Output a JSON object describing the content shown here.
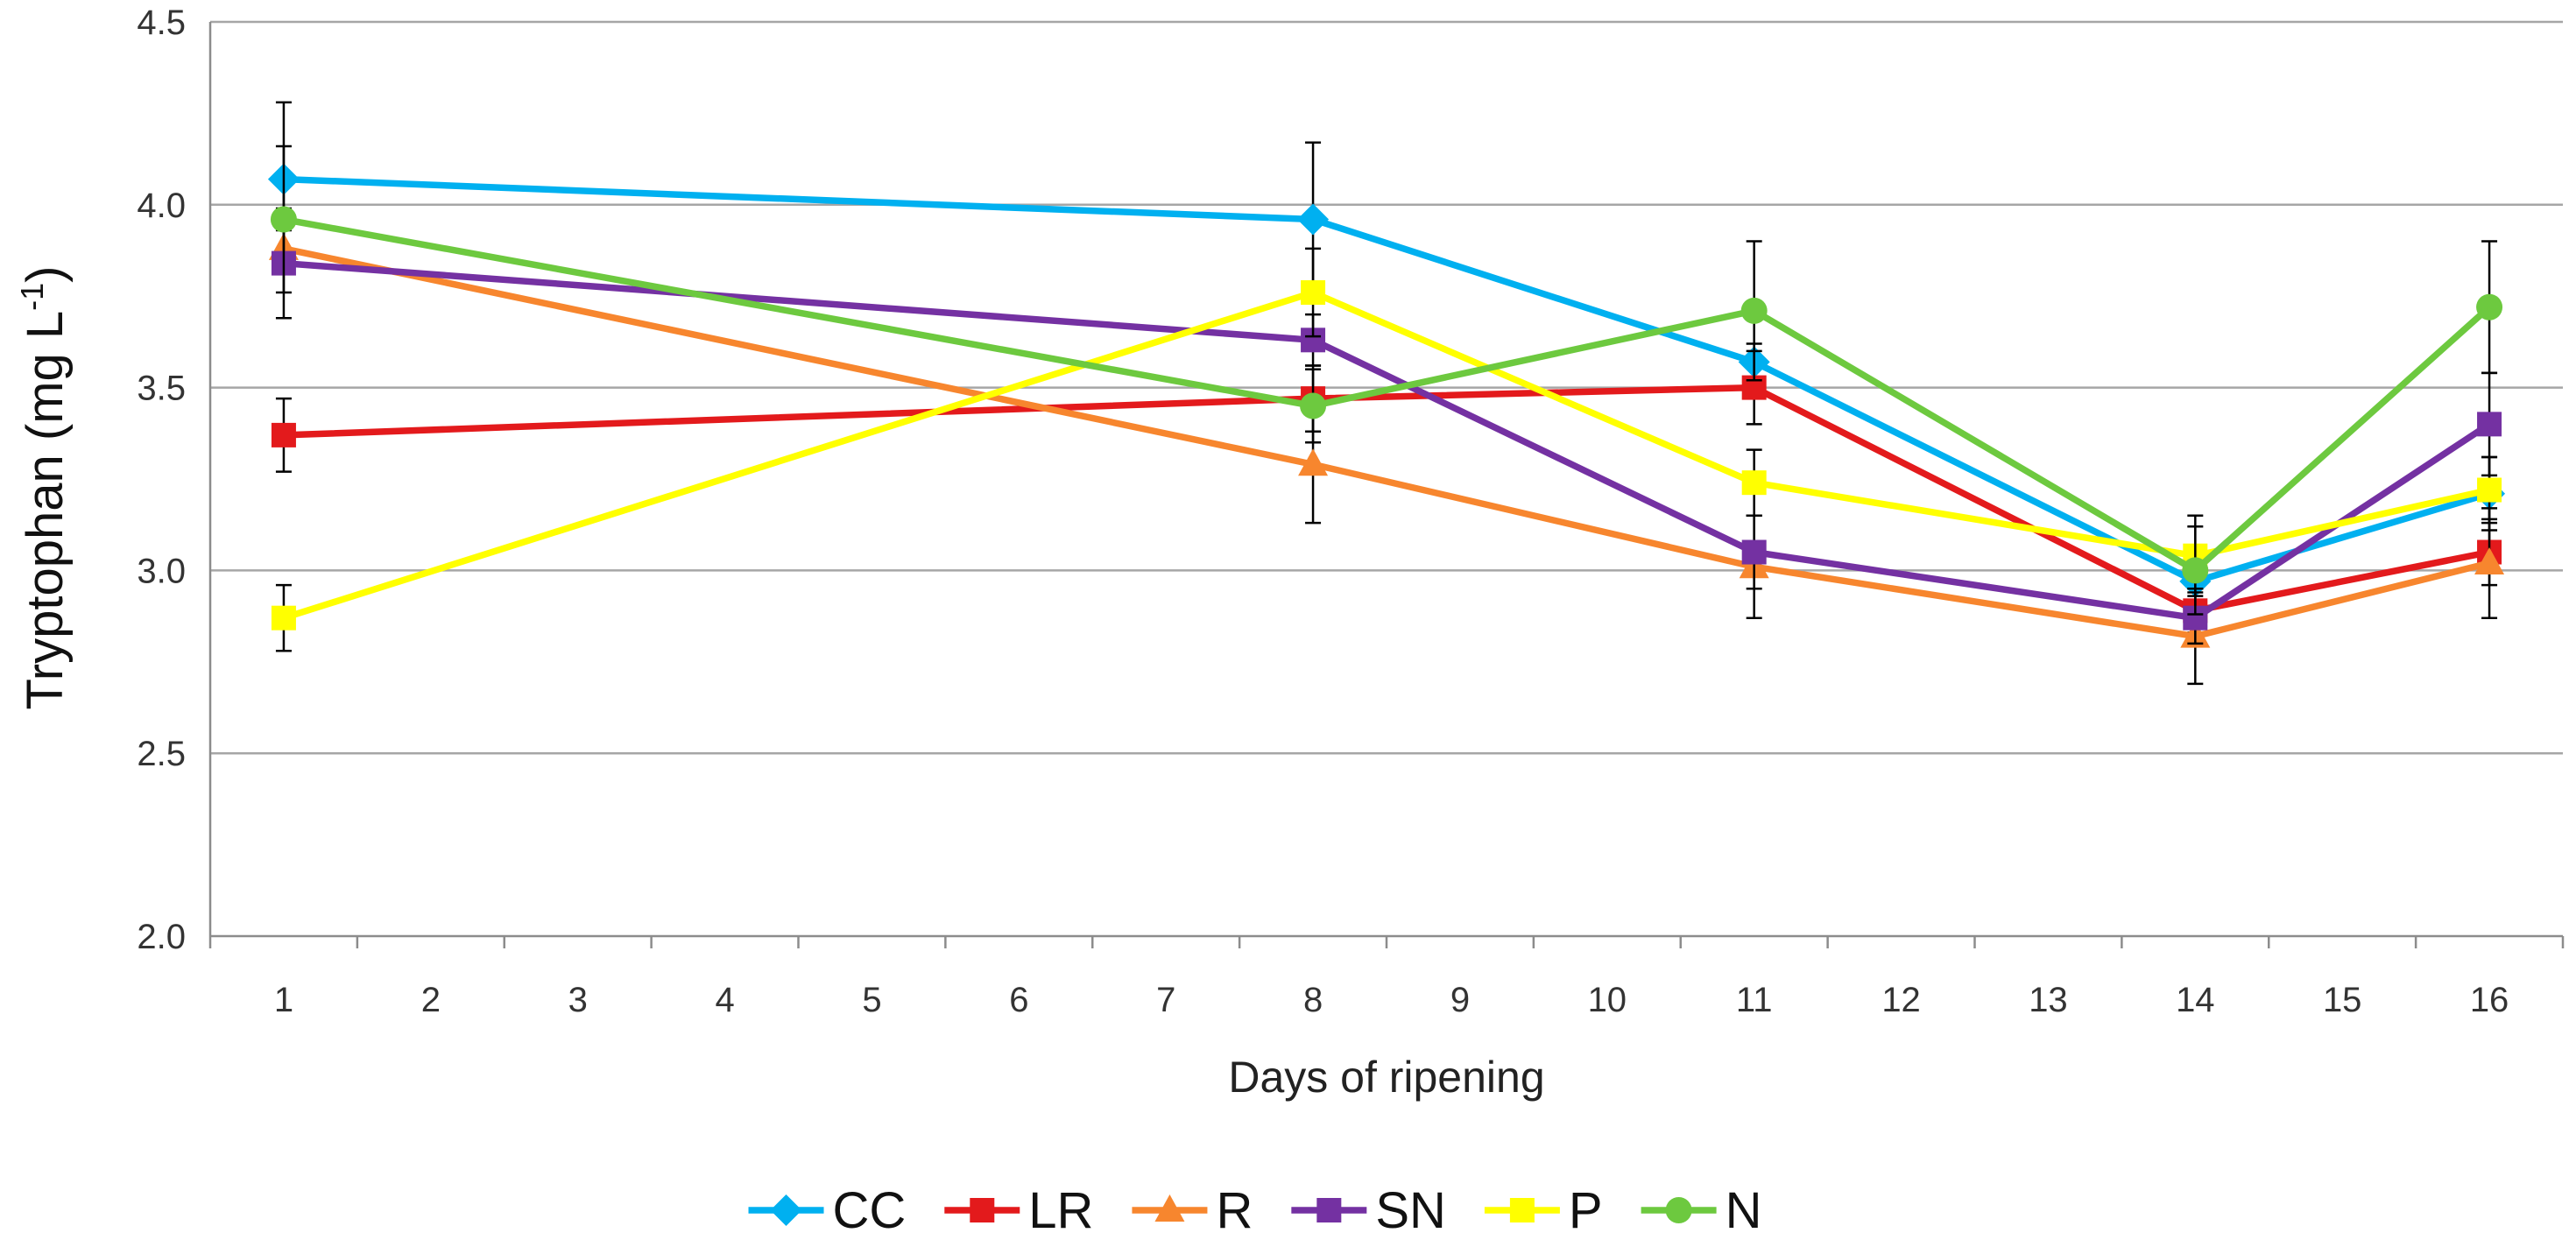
{
  "chart_data": {
    "type": "line",
    "title": "",
    "xlabel": "Days of ripening",
    "ylabel": {
      "text": "Tryptophan (mg L",
      "superscript": "-1",
      "suffix": ")"
    },
    "categories": [
      "1",
      "2",
      "3",
      "4",
      "5",
      "6",
      "7",
      "8",
      "9",
      "10",
      "11",
      "12",
      "13",
      "14",
      "15",
      "16"
    ],
    "ylim": [
      2.0,
      4.5
    ],
    "yticks": [
      2.0,
      2.5,
      3.0,
      3.5,
      4.0,
      4.5
    ],
    "ytick_labels": [
      "2.0",
      "2.5",
      "3.0",
      "3.5",
      "4.0",
      "4.5"
    ],
    "grid": true,
    "legend": "bottom",
    "x": [
      1,
      8,
      11,
      14,
      16
    ],
    "series": [
      {
        "name": "CC",
        "color": "#00B0F0",
        "marker": "diamond",
        "values": [
          4.07,
          3.96,
          3.57,
          2.97,
          3.21
        ],
        "errors": [
          0.21,
          0.21,
          0.05,
          0.08,
          0.1
        ]
      },
      {
        "name": "LR",
        "color": "#E31A1C",
        "marker": "square",
        "values": [
          3.37,
          3.47,
          3.5,
          2.89,
          3.05
        ],
        "errors": [
          0.1,
          0.09,
          0.1,
          0.06,
          0.09
        ]
      },
      {
        "name": "R",
        "color": "#F7862E",
        "marker": "triangle",
        "values": [
          3.88,
          3.29,
          3.01,
          2.82,
          3.02
        ],
        "errors": [
          0.05,
          0.16,
          0.14,
          0.13,
          0.15
        ]
      },
      {
        "name": "SN",
        "color": "#7431A2",
        "marker": "square",
        "values": [
          3.84,
          3.63,
          3.05,
          2.87,
          3.4
        ],
        "errors": [
          0.15,
          0.07,
          0.1,
          0.07,
          0.14
        ]
      },
      {
        "name": "P",
        "color": "#FFFF00",
        "marker": "square",
        "values": [
          2.87,
          3.76,
          3.24,
          3.04,
          3.22
        ],
        "errors": [
          0.09,
          0.12,
          0.09,
          0.11,
          0.09
        ]
      },
      {
        "name": "N",
        "color": "#6DC93F",
        "marker": "circle",
        "values": [
          3.96,
          3.45,
          3.71,
          3.0,
          3.72
        ],
        "errors": [
          0.2,
          0.1,
          0.19,
          0.12,
          0.18
        ]
      }
    ]
  }
}
